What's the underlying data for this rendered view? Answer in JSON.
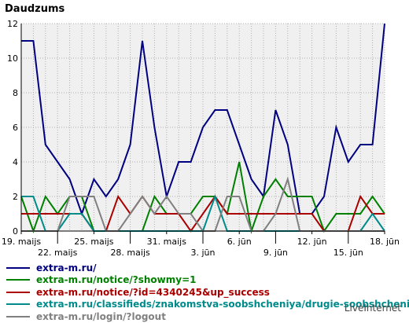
{
  "chart_data": {
    "type": "line",
    "title": "Daudzums",
    "ylim": [
      0,
      12
    ],
    "yticks": [
      0,
      2,
      4,
      6,
      8,
      10,
      12
    ],
    "x_tick_labels": [
      {
        "index": 0,
        "label": "19. maijs"
      },
      {
        "index": 3,
        "label": "22. maijs"
      },
      {
        "index": 6,
        "label": "25. maijs"
      },
      {
        "index": 9,
        "label": "28. maijs"
      },
      {
        "index": 12,
        "label": "31. maijs"
      },
      {
        "index": 15,
        "label": "3. jūn"
      },
      {
        "index": 18,
        "label": "6. jūn"
      },
      {
        "index": 21,
        "label": "9. jūn"
      },
      {
        "index": 24,
        "label": "12. jūn"
      },
      {
        "index": 27,
        "label": "15. jūn"
      },
      {
        "index": 30,
        "label": "18. jūn"
      }
    ],
    "grid": true,
    "legend_position": "bottom",
    "series": [
      {
        "name": "extra-m.ru/",
        "color": "#000080",
        "values": [
          11,
          11,
          5,
          4,
          3,
          1,
          3,
          2,
          3,
          5,
          11,
          6,
          2,
          4,
          4,
          6,
          7,
          7,
          5,
          3,
          2,
          7,
          5,
          1,
          1,
          2,
          6,
          4,
          5,
          5,
          12
        ]
      },
      {
        "name": "extra-m.ru/notice/?showmy=1",
        "color": "#008000",
        "values": [
          2,
          0,
          2,
          1,
          2,
          2,
          0,
          0,
          0,
          0,
          0,
          2,
          1,
          1,
          1,
          2,
          2,
          1,
          4,
          0,
          2,
          3,
          2,
          2,
          2,
          0,
          1,
          1,
          1,
          2,
          1
        ]
      },
      {
        "name": "extra-m.ru/notice/?id=4340245&up_success",
        "color": "#aa0000",
        "values": [
          1,
          1,
          1,
          1,
          1,
          1,
          0,
          0,
          2,
          1,
          2,
          1,
          1,
          1,
          0,
          1,
          2,
          1,
          1,
          1,
          1,
          1,
          1,
          1,
          1,
          0,
          0,
          0,
          2,
          1,
          1
        ]
      },
      {
        "name": "extra-m.ru/classifieds/znakomstva-soobshcheniya/drugie-soobshcheniya/l",
        "color": "#008b8b",
        "values": [
          2,
          2,
          0,
          0,
          1,
          1,
          0,
          0,
          0,
          0,
          0,
          0,
          0,
          0,
          0,
          0,
          2,
          0,
          0,
          0,
          0,
          0,
          0,
          0,
          0,
          0,
          0,
          0,
          0,
          1,
          0
        ]
      },
      {
        "name": "extra-m.ru/login/?logout",
        "color": "#808080",
        "values": [
          0,
          0,
          0,
          0,
          2,
          2,
          2,
          0,
          0,
          1,
          2,
          1,
          2,
          1,
          1,
          0,
          0,
          2,
          2,
          0,
          0,
          1,
          3,
          0,
          0,
          0,
          0,
          0,
          0,
          0,
          0
        ]
      }
    ]
  },
  "footer": {
    "brand": "LiveInternet"
  }
}
